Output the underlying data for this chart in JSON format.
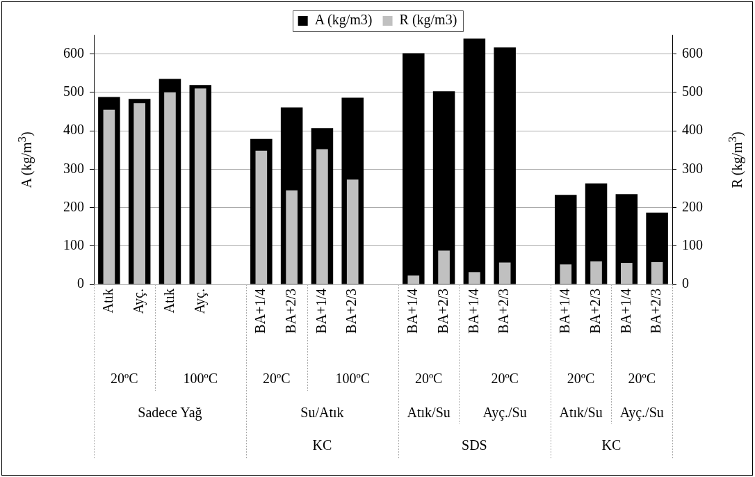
{
  "chart_data": {
    "type": "bar",
    "categories": [
      "Atık",
      "Ayç.",
      "Atık",
      "Ayç.",
      null,
      "BA+1/4",
      "BA+2/3",
      "BA+1/4",
      "BA+2/3",
      null,
      "BA+1/4",
      "BA+2/3",
      "BA+1/4",
      "BA+2/3",
      null,
      "BA+1/4",
      "BA+2/3",
      "BA+1/4",
      "BA+2/3"
    ],
    "series": [
      {
        "name": "A (kg/m3)",
        "color": "#000000",
        "values": [
          488,
          483,
          535,
          519,
          null,
          379,
          461,
          407,
          486,
          null,
          602,
          503,
          640,
          617,
          null,
          233,
          263,
          235,
          187
        ]
      },
      {
        "name": "R (kg/m3)",
        "color": "#c0c0c0",
        "axis": "y2",
        "values": [
          455,
          472,
          500,
          510,
          null,
          348,
          245,
          352,
          273,
          null,
          23,
          88,
          32,
          57,
          null,
          52,
          60,
          56,
          58
        ]
      }
    ],
    "ylabel": "A (kg/m$^{3}$)",
    "y2label": "R (kg/m$^{3}$)",
    "ylim": [
      0,
      650
    ],
    "yticks": [
      0,
      100,
      200,
      300,
      400,
      500,
      600
    ],
    "y2lim": [
      0,
      650
    ],
    "y2ticks": [
      0,
      100,
      200,
      300,
      400,
      500,
      600
    ],
    "annotations": [
      "20ºC",
      "100ºC",
      "20ºC",
      "100ºC",
      "20ºC",
      "20ºC",
      "20ºC",
      "20ºC",
      "Sadece Yağ",
      "Su/Atık",
      "Atık/Su",
      "Ayç./Su",
      "Atık/Su",
      "Ayç./Su",
      "KC",
      "SDS",
      "KC"
    ],
    "grid": "y",
    "legend": "top"
  }
}
